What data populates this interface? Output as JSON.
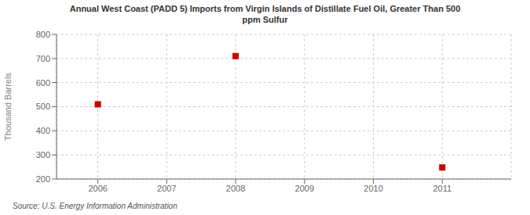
{
  "chart_data": {
    "type": "scatter",
    "title": "Annual West Coast (PADD 5) Imports from Virgin Islands of Distillate Fuel Oil, Greater Than 500\nppm Sulfur",
    "ylabel": "Thousand Barrels",
    "annotations": [
      "Source: U.S. Energy Information Administration"
    ],
    "x": [
      2006,
      2008,
      2011
    ],
    "values": [
      510,
      710,
      248
    ],
    "xlim": [
      2005.4,
      2012.0
    ],
    "ylim": [
      200,
      800
    ],
    "xticks": [
      2006,
      2007,
      2008,
      2009,
      2010,
      2011
    ],
    "yticks": [
      200,
      300,
      400,
      500,
      600,
      700,
      800
    ],
    "color": "#cc0000",
    "marker": "square",
    "grid": true
  }
}
